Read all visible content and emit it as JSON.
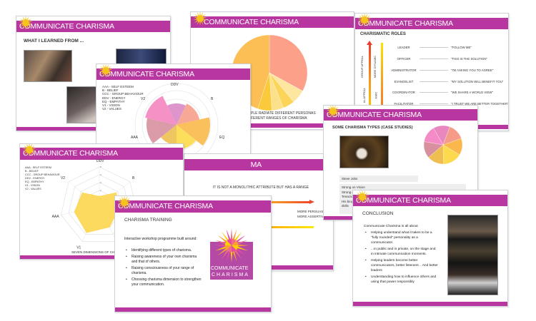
{
  "brand": {
    "header_text": "COMMUNICATE CHARISMA",
    "purple": "#b8369f",
    "sun_color": "#f6c21c"
  },
  "slide_learned": {
    "title": "WHAT I LEARNED FROM ..."
  },
  "slide_pie": {
    "caption_line1": "PLE RADIATE DIFFERENT PERSONAS",
    "caption_line2": "FERENT RANGES OF CHARISMA"
  },
  "slide_roles": {
    "title": "CHARISMATIC ROLES",
    "axis_labels": [
      "GROUP APPEAL",
      "MORE DYNAMIC",
      "AL APPEAL",
      "AMIC"
    ],
    "rows": [
      {
        "role": "LEADER",
        "quote": "\"FOLLOW ME\""
      },
      {
        "role": "OFFICER",
        "quote": "\"THIS IS THE SOLUTION\""
      },
      {
        "role": "ADMINISTRATOR",
        "quote": "\"I'M ASKING YOU TO AGREE\""
      },
      {
        "role": "EVANGELIST",
        "quote": "\"MY SOLUTION WILL BENEFIT YOU\""
      },
      {
        "role": "COORDINATOR",
        "quote": "\"WE SHARE A WORLD VIEW\""
      },
      {
        "role": "FACILITATOR",
        "quote": "\"I TRUST WE ARE BETTER TOGETHER\""
      },
      {
        "role": "",
        "quote": "LIEFS\""
      }
    ]
  },
  "legend": [
    "AAA - SELF ESTEEM",
    "B - BELIEF",
    "CCC - GROUP BEHAVIOUR",
    "DDV - ENERGY",
    "EQ - EMPATHY",
    "V1 - VISION",
    "V2 - VALUES"
  ],
  "slide_polar": {
    "caption": "ONS OF CHARISMA"
  },
  "slide_radar": {
    "caption": "SEVEN DIMENSIONS OF CHA"
  },
  "slide_range": {
    "header_tail": "MA",
    "statement": "IT IS NOT A MONOLITHIC ATTRIBUTE BUT HAS A RANGE",
    "label1": "MORE PERSUASIVE",
    "label2": "MORE ASSERTIVE"
  },
  "slide_training": {
    "title": "CHARISMA TRAINING",
    "intro": "Interactive workshop programme built around:",
    "bullets": [
      "Identifying different types of charisma.",
      "Raising awareness of your own charisma and that of others.",
      "Raising consciousness of your range of charisma.",
      "Choosing charisma dimension to strengthen  your communication."
    ],
    "logo_line1": "COMMUNICATE",
    "logo_line2": "CHARISMA"
  },
  "slide_cases": {
    "title": "SOME CHARISMA TYPES (CASE STUDIES)",
    "name": "Steve Jobs",
    "notes": [
      "Strong on Vision",
      "Strong o",
      "Tenacio",
      "His biog",
      "skills"
    ]
  },
  "slide_conclusion": {
    "title": "CONCLUSION",
    "intro": "Communicate Charisma is all about",
    "bullets": [
      "Helping understand what it takes to be a \"fully rounded\" personality  as a communicator.",
      "...In public and in private, on the stage and in intimate communication moments.",
      "Helping  leaders become  better communicators, better listeners .. And better leaders",
      "Understanding how to influence others and using that power responsibly"
    ]
  },
  "chart_data": [
    {
      "type": "pie",
      "chart": "polar-area",
      "categories": [
        "DDV",
        "B",
        "EQ",
        "CCC",
        "V1",
        "AAA",
        "V2"
      ],
      "values": [
        3,
        3.3,
        4.7,
        3.5,
        2.8,
        4.2,
        4.5
      ],
      "colors": [
        "#d98ac7",
        "#f7a08a",
        "#f9b94a",
        "#fcd94a",
        "#eec050",
        "#d8909e",
        "#f585c0"
      ],
      "extra_label": "CCC"
    },
    {
      "type": "radar",
      "categories": [
        "DDV",
        "B",
        "EQ",
        "CCC",
        "V1",
        "AAA",
        "V2"
      ],
      "values": [
        1.3,
        2.8,
        2.5,
        3,
        3.8,
        3.3,
        2.8
      ],
      "rlim": [
        0,
        5
      ],
      "ticks": [
        "1",
        "2",
        "3",
        "4",
        "5"
      ],
      "color": "#fbd64e"
    },
    {
      "type": "pie",
      "values": [
        33,
        6,
        5,
        5,
        6,
        45
      ],
      "colors": [
        "#fca08a",
        "#fde7a0",
        "#fcd45a",
        "#fde08a",
        "#fbca3a",
        "#fbbf55"
      ]
    },
    {
      "type": "pie",
      "values": [
        14,
        14,
        14,
        16,
        14,
        14,
        14
      ],
      "colors": [
        "#e887c0",
        "#f69b88",
        "#fab84c",
        "#fdd94e",
        "#efbe50",
        "#d8909e",
        "#f48ac6"
      ]
    }
  ]
}
